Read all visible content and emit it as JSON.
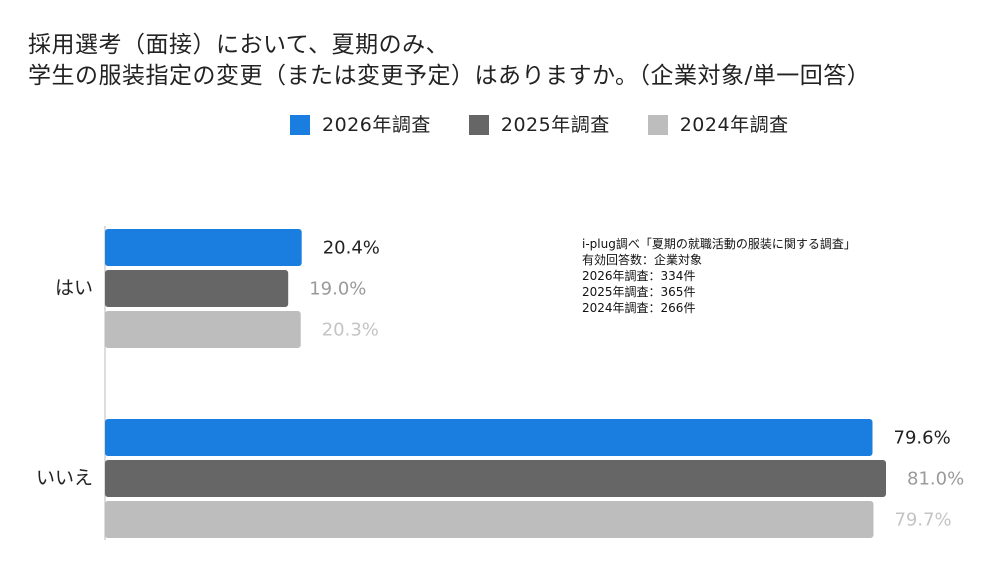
{
  "chart_data": {
    "type": "bar",
    "orientation": "horizontal",
    "title_lines": [
      "採用選考（面接）において、夏期のみ、",
      "学生の服装指定の変更（または変更予定）はありますか。（企業対象/単一回答）"
    ],
    "categories": [
      "はい",
      "いいえ"
    ],
    "series": [
      {
        "name": "2026年調査",
        "color": "#1a7de0",
        "label_color": "#222222",
        "values": [
          20.4,
          79.6
        ]
      },
      {
        "name": "2025年調査",
        "color": "#666666",
        "label_color": "#9a9a9a",
        "values": [
          19.0,
          81.0
        ]
      },
      {
        "name": "2024年調査",
        "color": "#bdbdbd",
        "label_color": "#c4c4c4",
        "values": [
          20.3,
          79.7
        ]
      }
    ],
    "value_suffix": "%",
    "xlim": [
      0,
      81.0
    ],
    "grid": false,
    "legend_position": "top"
  },
  "source_note": {
    "lines": [
      "i-plug調べ「夏期の就職活動の服装に関する調査」",
      "有効回答数：企業対象",
      "2026年調査：334件",
      "2025年調査：365件",
      "2024年調査：266件"
    ]
  }
}
